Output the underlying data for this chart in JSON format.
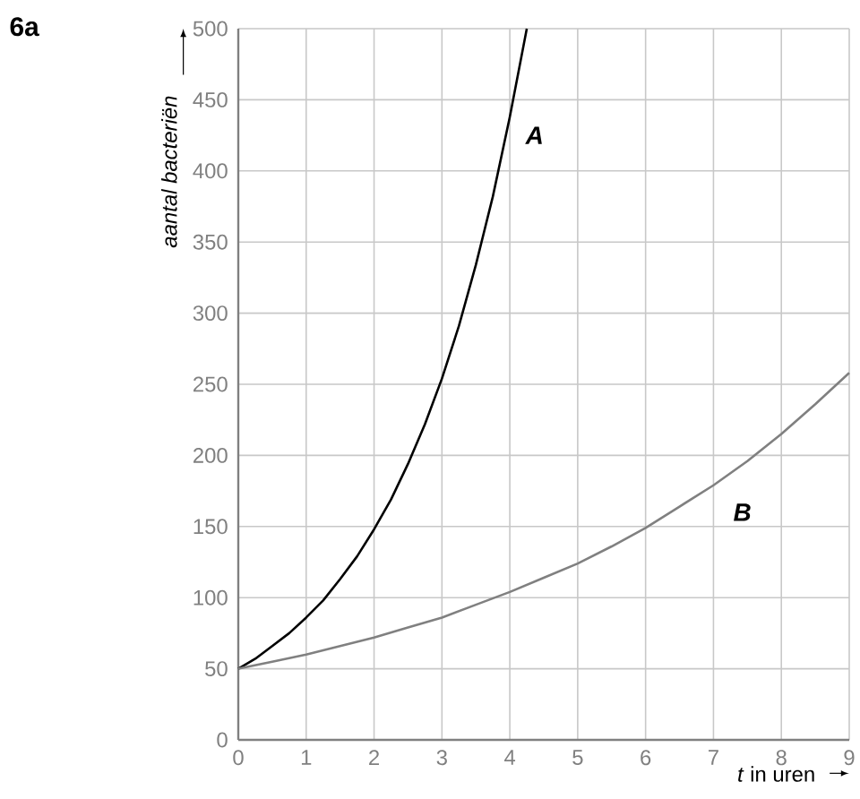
{
  "chart_data": {
    "type": "line",
    "title": "6a",
    "xlabel": "*t* in uren",
    "ylabel": "aantal bacteriën",
    "xlim": [
      0,
      9
    ],
    "ylim": [
      0,
      500
    ],
    "xticks": [
      0,
      1,
      2,
      3,
      4,
      5,
      6,
      7,
      8,
      9
    ],
    "yticks": [
      0,
      50,
      100,
      150,
      200,
      250,
      300,
      350,
      400,
      450,
      500
    ],
    "grid": true,
    "series": [
      {
        "color": "#000000",
        "x": [
          0,
          0.25,
          0.5,
          0.75,
          1,
          1.25,
          1.5,
          1.75,
          2,
          2.25,
          2.5,
          2.75,
          3,
          3.25,
          3.5,
          3.75,
          4,
          4.25
        ],
        "values": [
          50,
          57,
          66,
          75,
          86,
          98,
          113,
          129,
          148,
          169,
          194,
          222,
          254,
          291,
          334,
          382,
          438,
          500
        ]
      },
      {
        "color": "#808080",
        "x": [
          0,
          0.5,
          1,
          1.5,
          2,
          2.5,
          3,
          3.5,
          4,
          4.5,
          5,
          5.5,
          6,
          6.5,
          7,
          7.5,
          8,
          8.5,
          9
        ],
        "values": [
          50,
          55,
          60,
          66,
          72,
          79,
          86,
          95,
          104,
          114,
          124,
          136,
          149,
          164,
          179,
          196,
          215,
          236,
          258
        ]
      }
    ],
    "annotations": [
      "A",
      "B"
    ]
  }
}
